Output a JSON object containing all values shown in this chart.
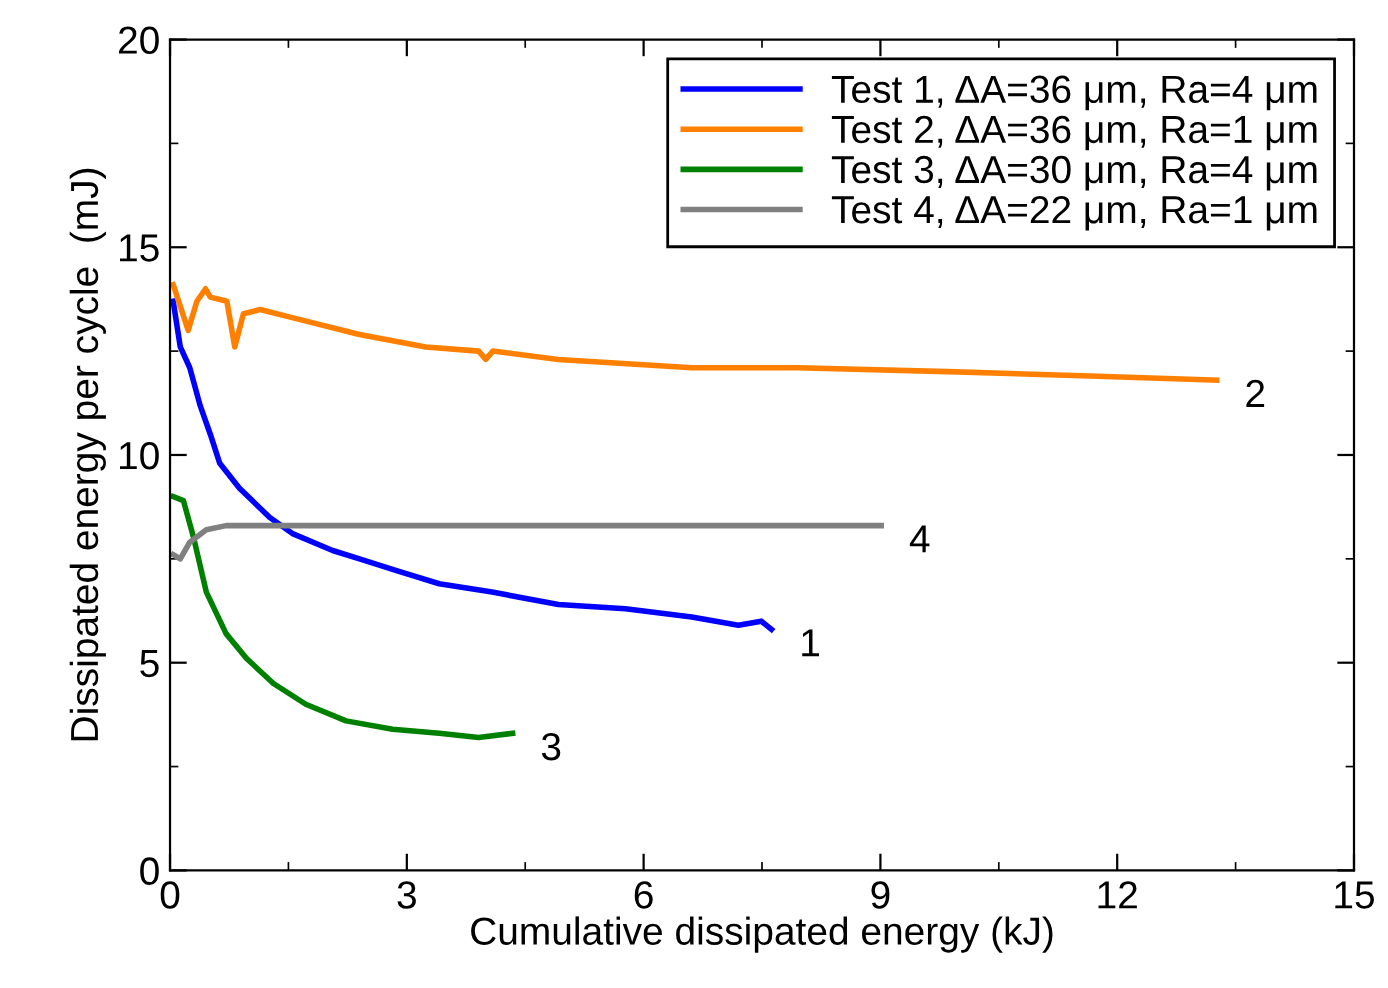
{
  "chart_data": {
    "type": "line",
    "xlabel": "Cumulative dissipated energy (kJ)",
    "ylabel": "Dissipated energy per cycle  (mJ)",
    "xlim": [
      0,
      15
    ],
    "xticks": [
      0,
      3,
      6,
      9,
      12,
      15
    ],
    "ylim": [
      0,
      20
    ],
    "yticks": [
      0,
      5,
      10,
      15,
      20
    ],
    "grid": false,
    "legend": "top right",
    "marker": "none",
    "line_style": "solid",
    "series": [
      {
        "name": "Test 1, ΔA=36 μm, Ra=4 μm",
        "color": "#0000ff",
        "x": [
          0.04,
          0.13,
          0.25,
          0.38,
          0.51,
          0.63,
          0.88,
          1.26,
          1.56,
          2.06,
          2.4,
          2.9,
          3.41,
          4.08,
          4.92,
          5.77,
          6.61,
          7.2,
          7.49,
          7.62
        ],
        "values": [
          13.7,
          12.6,
          12.1,
          11.2,
          10.5,
          9.8,
          9.2,
          8.5,
          8.1,
          7.7,
          7.5,
          7.2,
          6.9,
          6.7,
          6.4,
          6.3,
          6.1,
          5.9,
          6.0,
          5.8
        ]
      },
      {
        "name": "Test 2, ΔA=36 μm, Ra=1 μm",
        "color": "#ff8000",
        "x": [
          0.04,
          0.23,
          0.34,
          0.45,
          0.51,
          0.72,
          0.82,
          0.93,
          1.14,
          1.56,
          2.4,
          3.24,
          3.91,
          4.0,
          4.09,
          4.92,
          5.74,
          6.61,
          7.95,
          9.97,
          11.66,
          13.26
        ],
        "values": [
          14.1,
          13.0,
          13.7,
          14.0,
          13.8,
          13.7,
          12.6,
          13.4,
          13.5,
          13.3,
          12.9,
          12.6,
          12.5,
          12.3,
          12.5,
          12.3,
          12.2,
          12.1,
          12.1,
          12.0,
          11.9,
          11.8
        ]
      },
      {
        "name": "Test 3, ΔA=30 μm, Ra=4 μm",
        "color": "#008000",
        "x": [
          0.04,
          0.17,
          0.3,
          0.46,
          0.71,
          0.97,
          1.31,
          1.72,
          2.23,
          2.82,
          3.41,
          3.91,
          4.34
        ],
        "values": [
          9.0,
          8.9,
          8.0,
          6.7,
          5.7,
          5.1,
          4.5,
          4.0,
          3.6,
          3.4,
          3.3,
          3.2,
          3.3
        ]
      },
      {
        "name": "Test 4, ΔA=22 μm, Ra=1 μm",
        "color": "#808080",
        "x": [
          0.04,
          0.13,
          0.25,
          0.46,
          0.71,
          7.95,
          9.01
        ],
        "values": [
          7.6,
          7.5,
          7.9,
          8.2,
          8.3,
          8.3,
          8.3
        ]
      }
    ],
    "annotations": [
      {
        "text": "1",
        "x": 7.62,
        "y": 5.8
      },
      {
        "text": "2",
        "x": 13.26,
        "y": 11.8
      },
      {
        "text": "3",
        "x": 4.34,
        "y": 3.3
      },
      {
        "text": "4",
        "x": 9.01,
        "y": 8.3
      }
    ]
  }
}
